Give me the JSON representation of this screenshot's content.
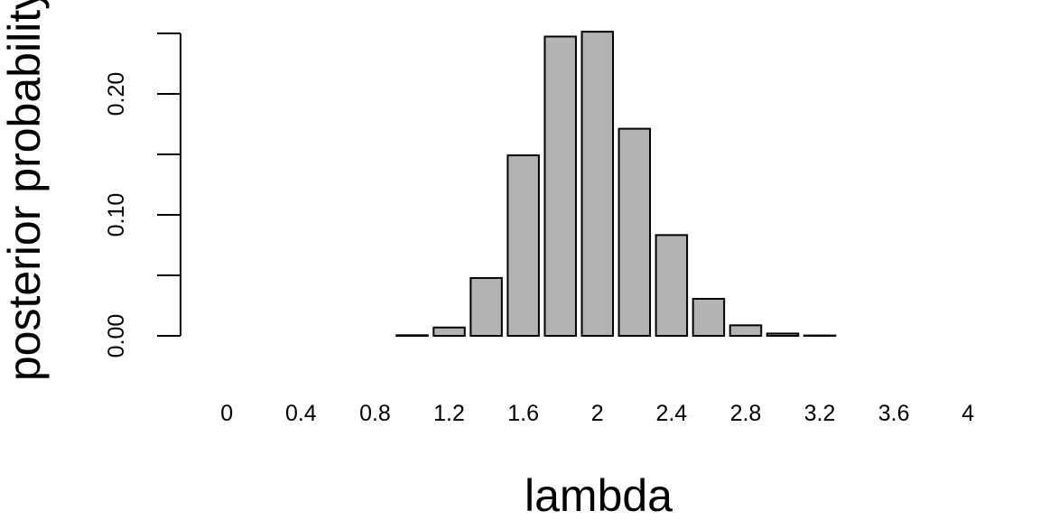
{
  "chart_data": {
    "type": "bar",
    "title": "",
    "xlabel": "lambda",
    "ylabel": "posterior probability",
    "categories": [
      "0",
      "0.2",
      "0.4",
      "0.6",
      "0.8",
      "1",
      "1.2",
      "1.4",
      "1.6",
      "1.8",
      "2",
      "2.2",
      "2.4",
      "2.6",
      "2.8",
      "3",
      "3.2",
      "3.4",
      "3.6",
      "3.8",
      "4"
    ],
    "values": [
      0.0,
      0.0,
      0.0,
      0.0,
      0.0,
      0.0005,
      0.0069,
      0.0478,
      0.1492,
      0.2474,
      0.2514,
      0.1712,
      0.0833,
      0.0306,
      0.0087,
      0.0019,
      0.0003,
      0.0,
      0.0,
      0.0,
      0.0
    ],
    "x_tick_labels": [
      "0",
      "0.4",
      "0.8",
      "1.2",
      "1.6",
      "2",
      "2.4",
      "2.8",
      "3.2",
      "3.6",
      "4"
    ],
    "x_tick_label_indices": [
      0,
      2,
      4,
      6,
      8,
      10,
      12,
      14,
      16,
      18,
      20
    ],
    "y_ticks": [
      0.0,
      0.05,
      0.1,
      0.15,
      0.2,
      0.25
    ],
    "y_tick_labels": [
      "0.00",
      "",
      "0.10",
      "",
      "0.20",
      ""
    ],
    "ylim": [
      0,
      0.25
    ],
    "grid": false,
    "legend": "none",
    "colors": {
      "bar_fill": "#b3b3b3",
      "bar_stroke": "#000000",
      "axis": "#000000",
      "background": "#ffffff"
    }
  }
}
